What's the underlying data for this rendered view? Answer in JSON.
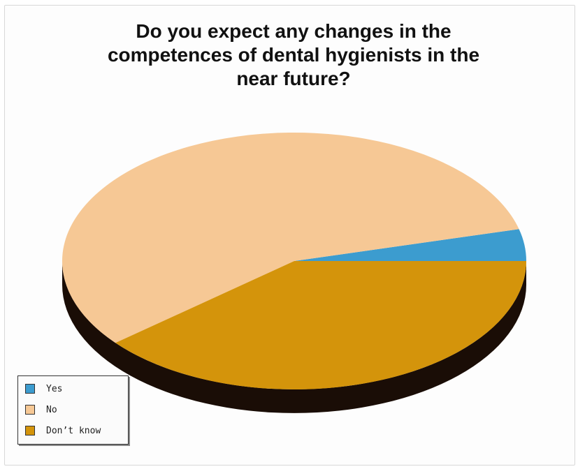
{
  "chart_data": {
    "type": "pie",
    "title_lines": [
      "Do you expect any changes in the",
      "competences of dental hygienists in the",
      "near future?"
    ],
    "categories": [
      "Yes",
      "No",
      "Don’t know"
    ],
    "values": [
      4,
      57,
      39
    ],
    "colors": [
      "#3c9ccf",
      "#f6c895",
      "#d4940b"
    ],
    "side_color": "#1a0d06",
    "legend_position": "bottom-left"
  }
}
